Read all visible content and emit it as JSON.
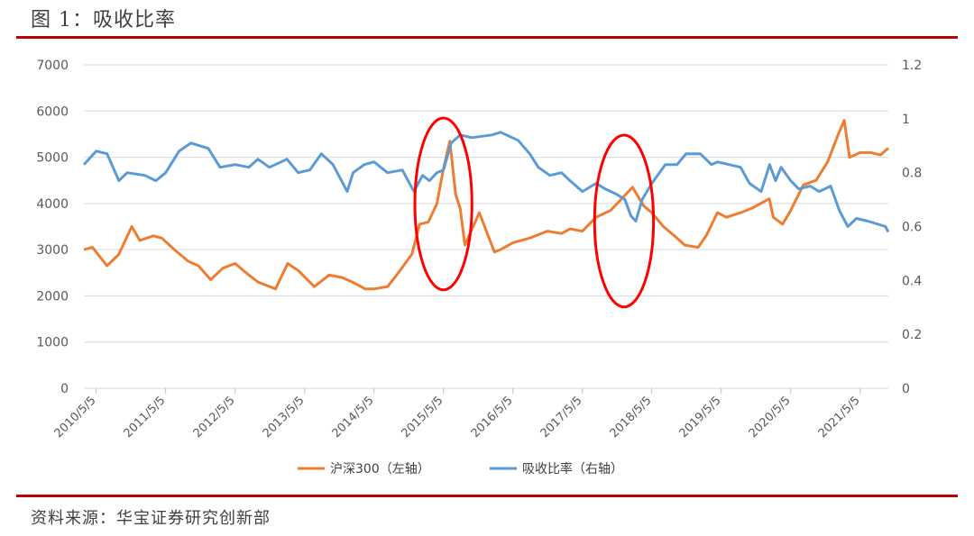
{
  "header": {
    "title": "图 1：吸收比率"
  },
  "footer": {
    "source": "资料来源：华宝证券研究创新部"
  },
  "colors": {
    "rule": "#c00000",
    "series_csi300": "#ed7d31",
    "series_absorption": "#5b9bd5",
    "highlight_circle": "#ff0000",
    "grid": "#d9d9d9"
  },
  "chart_data": {
    "type": "line",
    "title": "",
    "x_ticks": [
      "2010/5/5",
      "2011/5/5",
      "2012/5/5",
      "2013/5/5",
      "2014/5/5",
      "2015/5/5",
      "2016/5/5",
      "2017/5/5",
      "2018/5/5",
      "2019/5/5",
      "2020/5/5",
      "2021/5/5"
    ],
    "x_range": [
      "2010-03-01",
      "2021-09-30"
    ],
    "y_left": {
      "ticks": [
        "0",
        "1000",
        "2000",
        "3000",
        "4000",
        "5000",
        "6000",
        "7000"
      ],
      "lim": [
        0,
        7000
      ]
    },
    "y_right": {
      "ticks": [
        "0",
        "0.2",
        "0.4",
        "0.6",
        "0.8",
        "1",
        "1.2"
      ],
      "lim": [
        0,
        1.2
      ]
    },
    "grid": true,
    "legend_position": "bottom-center",
    "series": [
      {
        "name": "沪深300（左轴）",
        "axis": "left",
        "x": [
          "2010-03-01",
          "2010-04-15",
          "2010-07-01",
          "2010-09-01",
          "2010-11-08",
          "2010-12-20",
          "2011-03-01",
          "2011-04-15",
          "2011-06-20",
          "2011-09-01",
          "2011-10-25",
          "2011-12-28",
          "2012-03-01",
          "2012-05-05",
          "2012-07-01",
          "2012-09-01",
          "2012-12-03",
          "2013-02-05",
          "2013-04-01",
          "2013-06-25",
          "2013-09-10",
          "2013-11-15",
          "2014-01-10",
          "2014-03-20",
          "2014-05-05",
          "2014-07-15",
          "2014-09-01",
          "2014-11-20",
          "2014-12-31",
          "2015-02-15",
          "2015-04-01",
          "2015-05-05",
          "2015-06-08",
          "2015-07-08",
          "2015-08-01",
          "2015-08-26",
          "2015-11-10",
          "2016-01-28",
          "2016-03-01",
          "2016-05-05",
          "2016-08-01",
          "2016-11-01",
          "2017-01-15",
          "2017-03-01",
          "2017-05-05",
          "2017-07-15",
          "2017-10-01",
          "2018-01-24",
          "2018-03-23",
          "2018-05-05",
          "2018-07-05",
          "2018-09-01",
          "2018-10-25",
          "2019-01-03",
          "2019-02-15",
          "2019-04-15",
          "2019-06-01",
          "2019-08-15",
          "2019-10-15",
          "2020-01-13",
          "2020-02-03",
          "2020-03-23",
          "2020-05-05",
          "2020-07-10",
          "2020-09-15",
          "2020-11-15",
          "2021-01-10",
          "2021-02-10",
          "2021-03-10",
          "2021-05-05",
          "2021-07-01",
          "2021-08-20",
          "2021-09-30"
        ],
        "y": [
          3000,
          3050,
          2650,
          2900,
          3500,
          3200,
          3300,
          3250,
          3000,
          2750,
          2650,
          2350,
          2600,
          2700,
          2500,
          2300,
          2150,
          2700,
          2550,
          2200,
          2450,
          2400,
          2300,
          2150,
          2150,
          2200,
          2450,
          2900,
          3550,
          3600,
          4000,
          4750,
          5350,
          4200,
          3900,
          3100,
          3800,
          2950,
          3000,
          3150,
          3250,
          3400,
          3350,
          3450,
          3400,
          3700,
          3850,
          4350,
          3950,
          3800,
          3500,
          3300,
          3100,
          3050,
          3300,
          3800,
          3700,
          3800,
          3900,
          4100,
          3700,
          3550,
          3850,
          4400,
          4500,
          4900,
          5500,
          5800,
          5000,
          5100,
          5100,
          5050,
          5200
        ]
      },
      {
        "name": "吸收比率（右轴）",
        "axis": "right",
        "x": [
          "2010-03-01",
          "2010-05-05",
          "2010-07-01",
          "2010-09-01",
          "2010-10-15",
          "2011-01-15",
          "2011-03-15",
          "2011-05-05",
          "2011-07-15",
          "2011-09-15",
          "2011-12-15",
          "2012-02-15",
          "2012-05-05",
          "2012-07-15",
          "2012-09-01",
          "2012-11-01",
          "2013-02-01",
          "2013-04-01",
          "2013-06-01",
          "2013-08-01",
          "2013-10-01",
          "2013-12-15",
          "2014-01-15",
          "2014-03-15",
          "2014-05-05",
          "2014-07-15",
          "2014-10-01",
          "2014-12-01",
          "2015-01-15",
          "2015-02-20",
          "2015-04-01",
          "2015-05-05",
          "2015-06-15",
          "2015-08-01",
          "2015-10-01",
          "2016-01-15",
          "2016-03-01",
          "2016-06-01",
          "2016-08-01",
          "2016-09-15",
          "2016-11-15",
          "2017-01-15",
          "2017-03-01",
          "2017-05-05",
          "2017-07-15",
          "2017-09-01",
          "2017-11-01",
          "2017-12-15",
          "2018-01-15",
          "2018-02-10",
          "2018-03-15",
          "2018-05-05",
          "2018-07-15",
          "2018-09-15",
          "2018-11-01",
          "2019-01-15",
          "2019-03-15",
          "2019-04-15",
          "2019-06-15",
          "2019-08-15",
          "2019-10-01",
          "2019-12-01",
          "2020-01-15",
          "2020-02-15",
          "2020-03-15",
          "2020-05-05",
          "2020-06-15",
          "2020-08-15",
          "2020-10-01",
          "2020-12-01",
          "2021-01-15",
          "2021-03-01",
          "2021-04-15",
          "2021-06-15",
          "2021-08-01",
          "2021-09-15",
          "2021-09-30"
        ],
        "y": [
          0.83,
          0.88,
          0.87,
          0.77,
          0.8,
          0.79,
          0.77,
          0.8,
          0.88,
          0.91,
          0.89,
          0.82,
          0.83,
          0.82,
          0.85,
          0.82,
          0.85,
          0.8,
          0.81,
          0.87,
          0.83,
          0.73,
          0.8,
          0.83,
          0.84,
          0.8,
          0.81,
          0.73,
          0.79,
          0.77,
          0.8,
          0.81,
          0.91,
          0.94,
          0.93,
          0.94,
          0.95,
          0.92,
          0.87,
          0.82,
          0.79,
          0.8,
          0.77,
          0.73,
          0.76,
          0.74,
          0.72,
          0.7,
          0.64,
          0.62,
          0.7,
          0.76,
          0.83,
          0.83,
          0.87,
          0.87,
          0.83,
          0.84,
          0.83,
          0.82,
          0.76,
          0.73,
          0.83,
          0.77,
          0.82,
          0.77,
          0.74,
          0.75,
          0.73,
          0.75,
          0.66,
          0.6,
          0.63,
          0.62,
          0.61,
          0.6,
          0.58
        ]
      }
    ],
    "annotations": [
      {
        "type": "ellipse",
        "cx": "2015-05-05",
        "cy": 3990,
        "rx_days": 150,
        "ry": 1860,
        "color": "#ff0000"
      },
      {
        "type": "ellipse",
        "cx": "2017-12-10",
        "cy": 3620,
        "rx_days": 155,
        "ry": 1860,
        "color": "#ff0000"
      }
    ]
  }
}
